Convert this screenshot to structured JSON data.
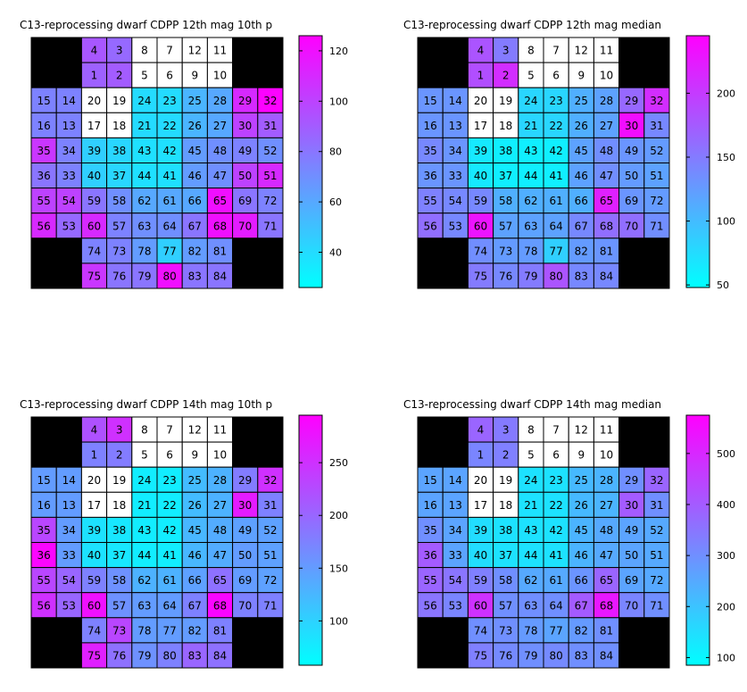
{
  "chart_data": [
    {
      "type": "heatmap",
      "title": "C13-reprocessing dwarf  CDPP 12th mag 10th p",
      "colorbar_range": [
        26,
        126
      ],
      "colorbar_ticks": [
        "40",
        "60",
        "80",
        "100",
        "120"
      ],
      "colorbar_tick_values": [
        40,
        60,
        80,
        100,
        120
      ],
      "rows": [
        [
          null,
          null,
          4,
          3,
          8,
          7,
          12,
          11,
          null,
          null
        ],
        [
          null,
          null,
          1,
          2,
          5,
          6,
          9,
          10,
          null,
          null
        ],
        [
          15,
          14,
          20,
          19,
          24,
          23,
          25,
          28,
          29,
          32
        ],
        [
          16,
          13,
          17,
          18,
          21,
          22,
          26,
          27,
          30,
          31
        ],
        [
          35,
          34,
          39,
          38,
          43,
          42,
          45,
          48,
          49,
          52
        ],
        [
          36,
          33,
          40,
          37,
          44,
          41,
          46,
          47,
          50,
          51
        ],
        [
          55,
          54,
          59,
          58,
          62,
          61,
          66,
          65,
          69,
          72
        ],
        [
          56,
          53,
          60,
          57,
          63,
          64,
          67,
          68,
          70,
          71
        ],
        [
          null,
          null,
          74,
          73,
          78,
          77,
          82,
          81,
          null,
          null
        ],
        [
          null,
          null,
          75,
          76,
          79,
          80,
          83,
          84,
          null,
          null
        ]
      ],
      "values": [
        [
          null,
          null,
          92,
          85,
          null,
          null,
          null,
          null,
          null,
          null
        ],
        [
          null,
          null,
          88,
          90,
          null,
          null,
          null,
          null,
          null,
          null
        ],
        [
          75,
          75,
          null,
          null,
          40,
          40,
          55,
          60,
          110,
          125
        ],
        [
          75,
          75,
          null,
          null,
          40,
          40,
          55,
          60,
          100,
          90
        ],
        [
          105,
          75,
          45,
          42,
          38,
          38,
          65,
          70,
          75,
          70
        ],
        [
          80,
          75,
          45,
          42,
          38,
          38,
          65,
          70,
          100,
          110
        ],
        [
          100,
          100,
          80,
          70,
          60,
          60,
          60,
          120,
          80,
          75
        ],
        [
          110,
          85,
          110,
          75,
          70,
          70,
          80,
          120,
          115,
          80
        ],
        [
          null,
          null,
          75,
          75,
          65,
          45,
          65,
          70,
          null,
          null
        ],
        [
          null,
          null,
          105,
          80,
          80,
          120,
          80,
          80,
          null,
          null
        ]
      ]
    },
    {
      "type": "heatmap",
      "title": "C13-reprocessing dwarf  CDPP 12th mag median",
      "colorbar_range": [
        48,
        245
      ],
      "colorbar_ticks": [
        "50",
        "100",
        "150",
        "200"
      ],
      "colorbar_tick_values": [
        50,
        100,
        150,
        200
      ],
      "rows": [
        [
          null,
          null,
          4,
          3,
          8,
          7,
          12,
          11,
          null,
          null
        ],
        [
          null,
          null,
          1,
          2,
          5,
          6,
          9,
          10,
          null,
          null
        ],
        [
          15,
          14,
          20,
          19,
          24,
          23,
          25,
          28,
          29,
          32
        ],
        [
          16,
          13,
          17,
          18,
          21,
          22,
          26,
          27,
          30,
          31
        ],
        [
          35,
          34,
          39,
          38,
          43,
          42,
          45,
          48,
          49,
          52
        ],
        [
          36,
          33,
          40,
          37,
          44,
          41,
          46,
          47,
          50,
          51
        ],
        [
          55,
          54,
          59,
          58,
          62,
          61,
          66,
          65,
          69,
          72
        ],
        [
          56,
          53,
          60,
          57,
          63,
          64,
          67,
          68,
          70,
          71
        ],
        [
          null,
          null,
          74,
          73,
          78,
          77,
          82,
          81,
          null,
          null
        ],
        [
          null,
          null,
          75,
          76,
          79,
          80,
          83,
          84,
          null,
          null
        ]
      ],
      "values": [
        [
          null,
          null,
          180,
          150,
          null,
          null,
          null,
          null,
          null,
          null
        ],
        [
          null,
          null,
          185,
          210,
          null,
          null,
          null,
          null,
          null,
          null
        ],
        [
          130,
          130,
          null,
          null,
          80,
          80,
          110,
          120,
          165,
          210
        ],
        [
          130,
          130,
          null,
          null,
          80,
          80,
          110,
          120,
          235,
          140
        ],
        [
          140,
          130,
          65,
          60,
          60,
          60,
          120,
          135,
          130,
          125
        ],
        [
          130,
          130,
          65,
          60,
          60,
          60,
          120,
          135,
          125,
          120
        ],
        [
          145,
          140,
          140,
          110,
          110,
          110,
          110,
          220,
          130,
          125
        ],
        [
          160,
          140,
          230,
          120,
          120,
          120,
          140,
          160,
          160,
          135
        ],
        [
          null,
          null,
          135,
          125,
          125,
          85,
          125,
          130,
          null,
          null
        ],
        [
          null,
          null,
          150,
          140,
          150,
          180,
          140,
          140,
          null,
          null
        ]
      ]
    },
    {
      "type": "heatmap",
      "title": "C13-reprocessing dwarf  CDPP 14th mag 10th p",
      "colorbar_range": [
        58,
        295
      ],
      "colorbar_ticks": [
        "100",
        "150",
        "200",
        "250"
      ],
      "colorbar_tick_values": [
        100,
        150,
        200,
        250
      ],
      "rows": [
        [
          null,
          null,
          4,
          3,
          8,
          7,
          12,
          11,
          null,
          null
        ],
        [
          null,
          null,
          1,
          2,
          5,
          6,
          9,
          10,
          null,
          null
        ],
        [
          15,
          14,
          20,
          19,
          24,
          23,
          25,
          28,
          29,
          32
        ],
        [
          16,
          13,
          17,
          18,
          21,
          22,
          26,
          27,
          30,
          31
        ],
        [
          35,
          34,
          39,
          38,
          43,
          42,
          45,
          48,
          49,
          52
        ],
        [
          36,
          33,
          40,
          37,
          44,
          41,
          46,
          47,
          50,
          51
        ],
        [
          55,
          54,
          59,
          58,
          62,
          61,
          66,
          65,
          69,
          72
        ],
        [
          56,
          53,
          60,
          57,
          63,
          64,
          67,
          68,
          70,
          71
        ],
        [
          null,
          null,
          74,
          73,
          78,
          77,
          82,
          81,
          null,
          null
        ],
        [
          null,
          null,
          75,
          76,
          79,
          80,
          83,
          84,
          null,
          null
        ]
      ],
      "values": [
        [
          null,
          null,
          220,
          250,
          null,
          null,
          null,
          null,
          null,
          null
        ],
        [
          null,
          null,
          175,
          180,
          null,
          null,
          null,
          null,
          null,
          null
        ],
        [
          150,
          150,
          null,
          null,
          75,
          75,
          120,
          130,
          180,
          250
        ],
        [
          150,
          150,
          null,
          null,
          75,
          75,
          120,
          130,
          270,
          175
        ],
        [
          230,
          150,
          85,
          80,
          75,
          75,
          125,
          135,
          145,
          145
        ],
        [
          290,
          150,
          85,
          80,
          75,
          75,
          125,
          135,
          150,
          145
        ],
        [
          230,
          200,
          175,
          160,
          130,
          130,
          145,
          190,
          150,
          145
        ],
        [
          250,
          200,
          280,
          160,
          150,
          150,
          175,
          290,
          175,
          175
        ],
        [
          null,
          null,
          175,
          230,
          150,
          150,
          150,
          175,
          null,
          null
        ],
        [
          null,
          null,
          265,
          190,
          160,
          175,
          200,
          190,
          null,
          null
        ]
      ]
    },
    {
      "type": "heatmap",
      "title": "C13-reprocessing dwarf  CDPP 14th mag median",
      "colorbar_range": [
        85,
        575
      ],
      "colorbar_ticks": [
        "100",
        "200",
        "300",
        "400",
        "500"
      ],
      "colorbar_tick_values": [
        100,
        200,
        300,
        400,
        500
      ],
      "rows": [
        [
          null,
          null,
          4,
          3,
          8,
          7,
          12,
          11,
          null,
          null
        ],
        [
          null,
          null,
          1,
          2,
          5,
          6,
          9,
          10,
          null,
          null
        ],
        [
          15,
          14,
          20,
          19,
          24,
          23,
          25,
          28,
          29,
          32
        ],
        [
          16,
          13,
          17,
          18,
          21,
          22,
          26,
          27,
          30,
          31
        ],
        [
          35,
          34,
          39,
          38,
          43,
          42,
          45,
          48,
          49,
          52
        ],
        [
          36,
          33,
          40,
          37,
          44,
          41,
          46,
          47,
          50,
          51
        ],
        [
          55,
          54,
          59,
          58,
          62,
          61,
          66,
          65,
          69,
          72
        ],
        [
          56,
          53,
          60,
          57,
          63,
          64,
          67,
          68,
          70,
          71
        ],
        [
          null,
          null,
          74,
          73,
          78,
          77,
          82,
          81,
          null,
          null
        ],
        [
          null,
          null,
          75,
          76,
          79,
          80,
          83,
          84,
          null,
          null
        ]
      ],
      "values": [
        [
          null,
          null,
          380,
          340,
          null,
          null,
          null,
          null,
          null,
          null
        ],
        [
          null,
          null,
          320,
          330,
          null,
          null,
          null,
          null,
          null,
          null
        ],
        [
          260,
          260,
          null,
          null,
          140,
          140,
          220,
          230,
          300,
          380
        ],
        [
          260,
          260,
          null,
          null,
          140,
          140,
          220,
          230,
          400,
          300
        ],
        [
          300,
          260,
          150,
          140,
          140,
          140,
          230,
          250,
          260,
          250
        ],
        [
          400,
          260,
          150,
          140,
          140,
          140,
          230,
          250,
          260,
          250
        ],
        [
          380,
          350,
          330,
          300,
          250,
          250,
          290,
          380,
          260,
          250
        ],
        [
          350,
          320,
          480,
          300,
          300,
          300,
          400,
          530,
          320,
          300
        ],
        [
          null,
          null,
          300,
          300,
          280,
          260,
          280,
          300,
          null,
          null
        ],
        [
          null,
          null,
          330,
          310,
          300,
          310,
          300,
          300,
          null,
          null
        ]
      ]
    }
  ]
}
